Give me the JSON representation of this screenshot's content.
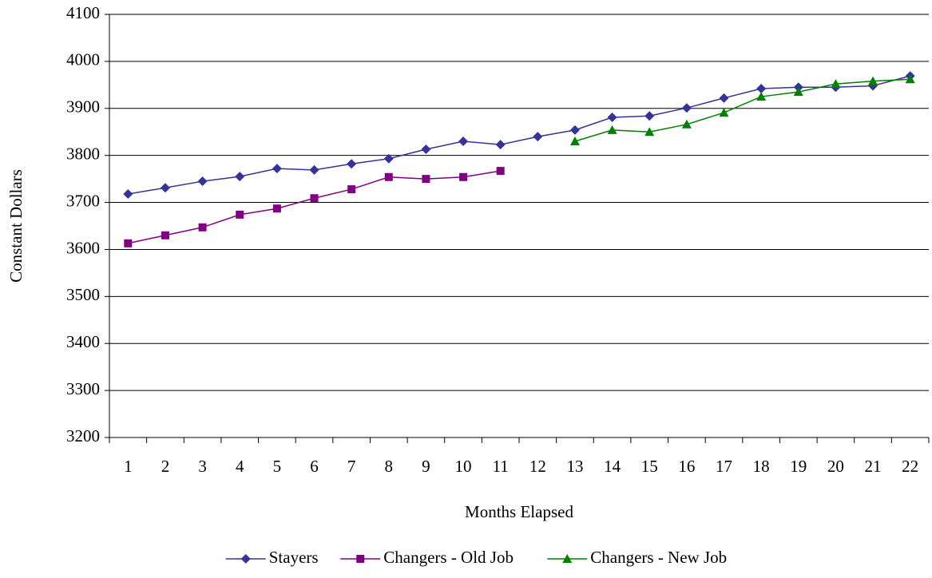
{
  "chart_data": {
    "type": "line",
    "y_label": "Constant Dollars",
    "x_label": "Months Elapsed",
    "categories": [
      "1",
      "2",
      "3",
      "4",
      "5",
      "6",
      "7",
      "8",
      "9",
      "10",
      "11",
      "12",
      "13",
      "14",
      "15",
      "16",
      "17",
      "18",
      "19",
      "20",
      "21",
      "22"
    ],
    "series": [
      {
        "name": "Stayers",
        "color": "#333399",
        "marker": "diamond",
        "values": [
          3718,
          3731,
          3745,
          3755,
          3772,
          3769,
          3782,
          3793,
          3813,
          3830,
          3823,
          3840,
          3854,
          3881,
          3884,
          3901,
          3922,
          3942,
          3945,
          3945,
          3948,
          3969
        ]
      },
      {
        "name": "Changers - Old Job",
        "color": "#800080",
        "marker": "square",
        "values": [
          3613,
          3630,
          3647,
          3674,
          3687,
          3709,
          3728,
          3754,
          3750,
          3754,
          3767,
          null,
          null,
          null,
          null,
          null,
          null,
          null,
          null,
          null,
          null,
          null
        ]
      },
      {
        "name": "Changers - New Job",
        "color": "#008000",
        "marker": "triangle",
        "values": [
          null,
          null,
          null,
          null,
          null,
          null,
          null,
          null,
          null,
          null,
          null,
          null,
          3830,
          3854,
          3850,
          3866,
          3891,
          3925,
          3935,
          3952,
          3958,
          3962
        ]
      }
    ],
    "ylim": [
      3200,
      4100
    ],
    "yticks": [
      3200,
      3300,
      3400,
      3500,
      3600,
      3700,
      3800,
      3900,
      4000,
      4100
    ],
    "grid": true,
    "legend": "bottom"
  }
}
